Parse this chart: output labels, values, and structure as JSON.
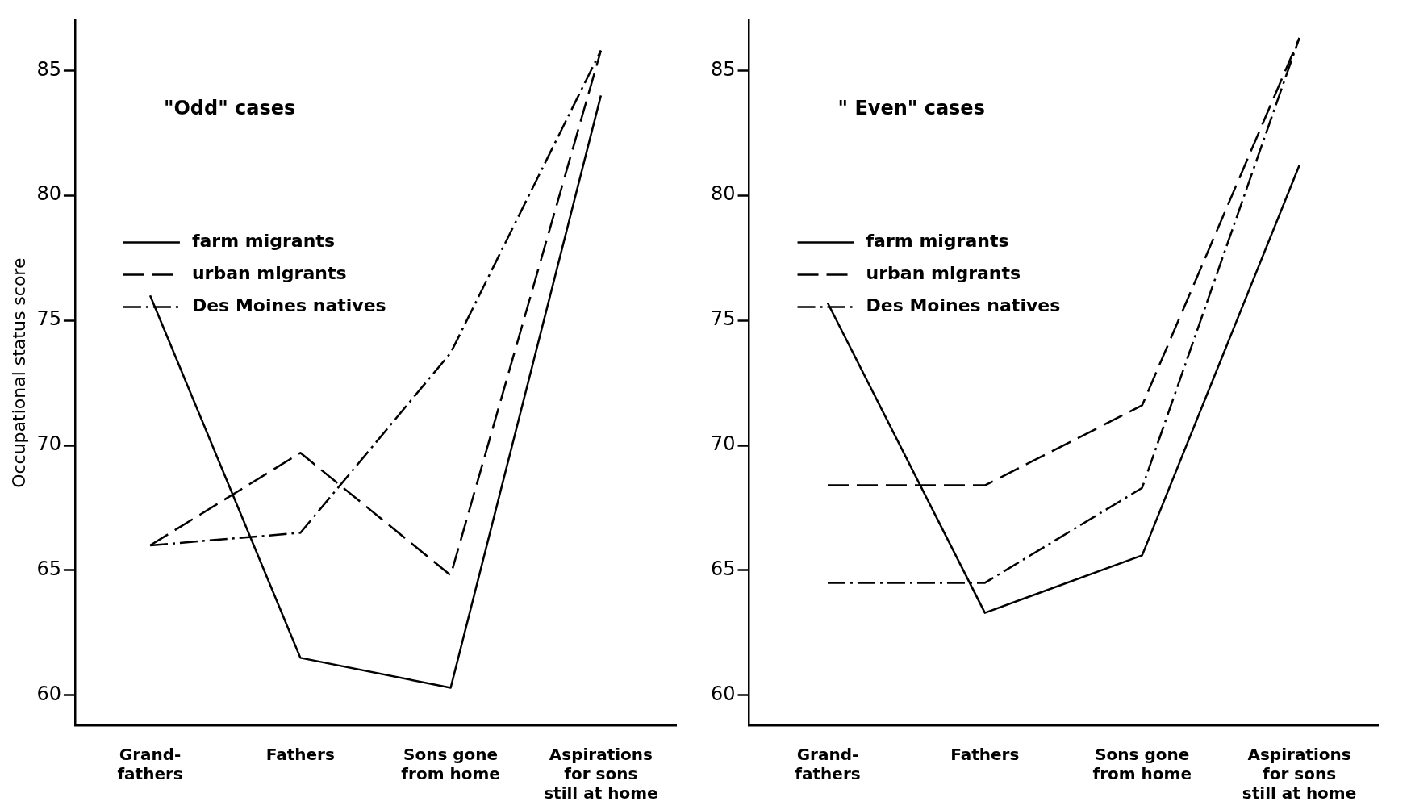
{
  "chart_data": [
    {
      "type": "line",
      "ylabel": "Occupational status score",
      "annotations": [
        "\"Odd\" cases"
      ],
      "categories": [
        "Grand-fathers",
        "Fathers",
        "Sons gone from home",
        "Aspirations for sons still at home"
      ],
      "ylim": [
        58.8,
        87
      ],
      "yticks": [
        60,
        65,
        70,
        75,
        80,
        85
      ],
      "grid": false,
      "legend": "top left",
      "marker": "none",
      "series": [
        {
          "name": "farm migrants",
          "color": "#000000",
          "line_style": "solid",
          "values": [
            76.0,
            61.5,
            60.3,
            84.0
          ]
        },
        {
          "name": "urban migrants",
          "color": "#000000",
          "line_style": "dashed",
          "values": [
            66.0,
            69.7,
            64.8,
            85.8
          ]
        },
        {
          "name": "Des Moines natives",
          "color": "#000000",
          "line_style": "dotted",
          "values": [
            66.0,
            66.5,
            73.7,
            85.8
          ]
        }
      ]
    },
    {
      "type": "line",
      "annotations": [
        "\" Even\" cases"
      ],
      "categories": [
        "Grand-fathers",
        "Fathers",
        "Sons gone from home",
        "Aspirations for sons still at home"
      ],
      "ylim": [
        58.8,
        87
      ],
      "yticks": [
        60,
        65,
        70,
        75,
        80,
        85
      ],
      "grid": false,
      "legend": "top left",
      "marker": "none",
      "series": [
        {
          "name": "farm migrants",
          "color": "#000000",
          "line_style": "solid",
          "values": [
            75.7,
            63.3,
            65.6,
            81.2
          ]
        },
        {
          "name": "urban migrants",
          "color": "#000000",
          "line_style": "dashed",
          "values": [
            68.4,
            68.4,
            71.6,
            86.3
          ]
        },
        {
          "name": "Des Moines natives",
          "color": "#000000",
          "line_style": "dotted",
          "values": [
            64.5,
            64.5,
            68.3,
            86.3
          ]
        }
      ]
    }
  ]
}
